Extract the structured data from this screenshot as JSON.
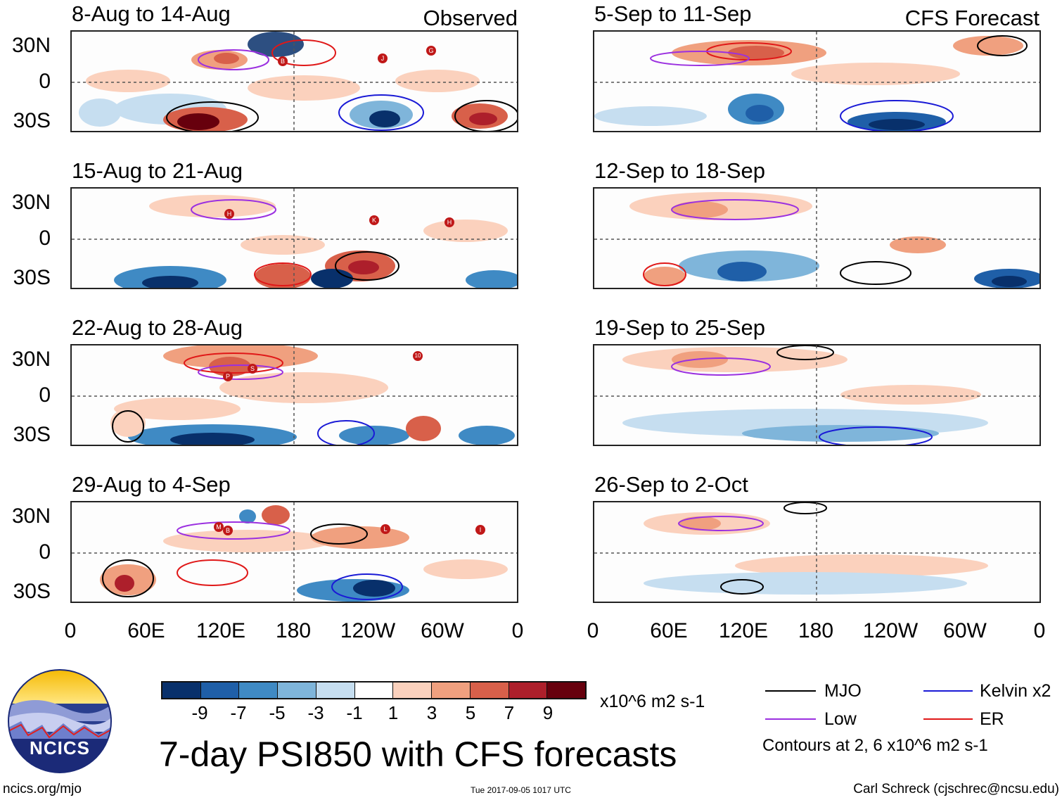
{
  "panels": [
    {
      "title": "8-Aug to 14-Aug",
      "tag": "Observed"
    },
    {
      "title": "15-Aug to 21-Aug",
      "tag": ""
    },
    {
      "title": "22-Aug to 28-Aug",
      "tag": ""
    },
    {
      "title": "29-Aug to 4-Sep",
      "tag": ""
    },
    {
      "title": "5-Sep to 11-Sep",
      "tag": "CFS Forecast"
    },
    {
      "title": "12-Sep to 18-Sep",
      "tag": ""
    },
    {
      "title": "19-Sep to 25-Sep",
      "tag": ""
    },
    {
      "title": "26-Sep to 2-Oct",
      "tag": ""
    }
  ],
  "axes": {
    "y_labels": [
      "30N",
      "0",
      "30S"
    ],
    "x_labels": [
      "0",
      "60E",
      "120E",
      "180",
      "120W",
      "60W",
      "0"
    ]
  },
  "colorbar": {
    "labels": [
      "-9",
      "-7",
      "-5",
      "-3",
      "-1",
      "1",
      "3",
      "5",
      "7",
      "9"
    ],
    "units": "x10^6 m2 s-1",
    "colors": [
      "#08306b",
      "#1f5fa8",
      "#3f8ac4",
      "#7fb5da",
      "#c6def0",
      "#ffffff",
      "#fbd1bd",
      "#f0a07f",
      "#d8604a",
      "#ad1f2b",
      "#67000d"
    ]
  },
  "legend": {
    "items": [
      {
        "label": "MJO",
        "color": "#000000"
      },
      {
        "label": "Kelvin x2",
        "color": "#1a1ad6"
      },
      {
        "label": "Low",
        "color": "#9b30e0"
      },
      {
        "label": "ER",
        "color": "#e01818"
      }
    ],
    "note": "Contours at 2, 6 x10^6 m2 s-1"
  },
  "logo": {
    "text": "NCICS"
  },
  "title": "7-day PSI850 with CFS forecasts",
  "footer": {
    "url": "ncics.org/mjo",
    "timestamp": "Tue 2017-09-05 1017 UTC",
    "author": "Carl Schreck (cjschrec@ncsu.edu)"
  },
  "storms": [
    [
      "B",
      "J",
      "G"
    ],
    [
      "H",
      "K",
      "H"
    ],
    [
      "P",
      "S",
      "10"
    ],
    [
      "M",
      "B",
      "L",
      "I"
    ]
  ]
}
